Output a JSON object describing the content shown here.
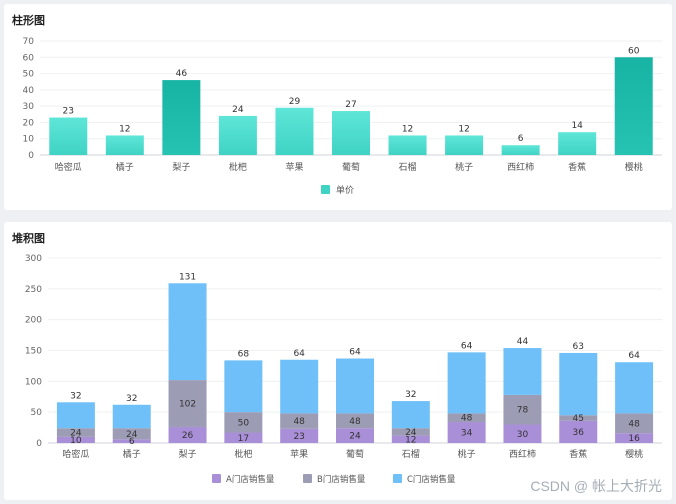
{
  "charts": {
    "bar": {
      "title": "柱形图"
    },
    "stacked": {
      "title": "堆积图"
    }
  },
  "watermark": "CSDN @ 帐上大折光",
  "chart_data": [
    {
      "type": "bar",
      "title": "柱形图",
      "categories": [
        "哈密瓜",
        "橘子",
        "梨子",
        "枇杷",
        "苹果",
        "葡萄",
        "石榴",
        "桃子",
        "西红柿",
        "香蕉",
        "樱桃"
      ],
      "series": [
        {
          "name": "单价",
          "values": [
            23,
            12,
            46,
            24,
            29,
            27,
            12,
            12,
            6,
            14,
            60
          ]
        }
      ],
      "ylim": [
        0,
        70
      ],
      "yticks": [
        0,
        10,
        20,
        30,
        40,
        50,
        60,
        70
      ],
      "grid": true,
      "legend": "bottom",
      "colors": {
        "light": "#5ee6d8",
        "dark": "#17b3a3",
        "highlight_indices": [
          2,
          10
        ]
      }
    },
    {
      "type": "bar",
      "stacked": true,
      "title": "堆积图",
      "categories": [
        "哈密瓜",
        "橘子",
        "梨子",
        "枇杷",
        "苹果",
        "葡萄",
        "石榴",
        "桃子",
        "西红柿",
        "香蕉",
        "樱桃"
      ],
      "series": [
        {
          "name": "A门店销售量",
          "color": "#a98fd8",
          "values": [
            10,
            6,
            26,
            17,
            23,
            24,
            12,
            34,
            30,
            36,
            16
          ],
          "label_mode": "B"
        },
        {
          "name": "B门店销售量",
          "color": "#9c9cb4",
          "values": [
            24,
            24,
            102,
            50,
            48,
            48,
            24,
            48,
            78,
            45,
            48
          ]
        },
        {
          "name": "C门店销售量",
          "color": "#6fc0f8",
          "values": [
            32,
            32,
            131,
            68,
            64,
            64,
            32,
            64,
            44,
            63,
            64
          ]
        }
      ],
      "data_labels": {
        "lower": [
          10,
          6,
          26,
          17,
          23,
          24,
          12,
          34,
          30,
          36,
          16
        ],
        "middle": [
          24,
          24,
          102,
          50,
          48,
          48,
          24,
          48,
          78,
          45,
          48
        ],
        "top": [
          32,
          32,
          131,
          68,
          64,
          64,
          32,
          64,
          44,
          63,
          64
        ]
      },
      "ylim": [
        0,
        300
      ],
      "yticks": [
        0,
        50,
        100,
        150,
        200,
        250,
        300
      ],
      "grid": true,
      "legend": "bottom"
    }
  ]
}
